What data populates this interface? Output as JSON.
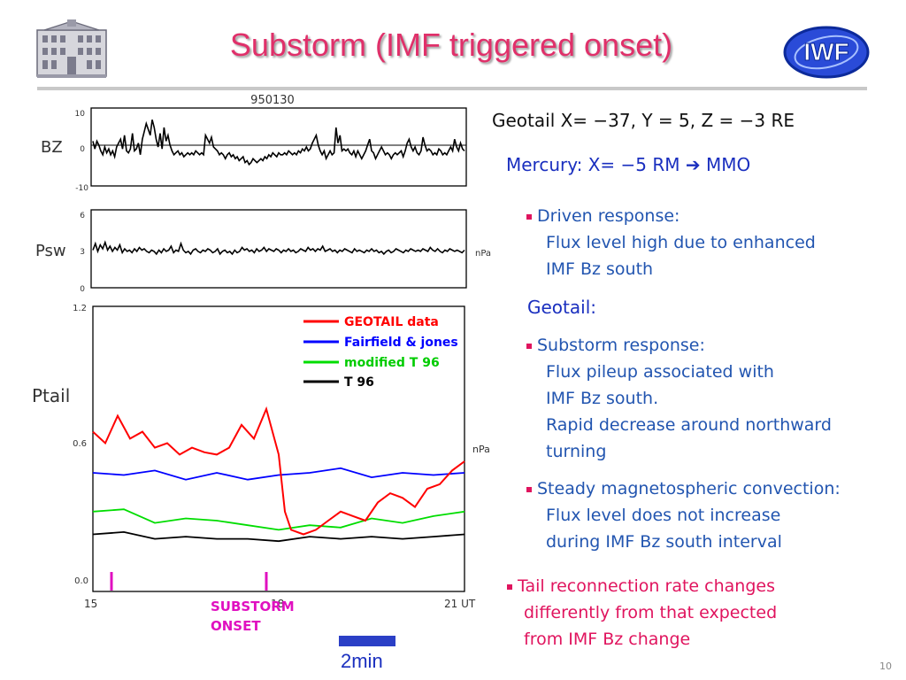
{
  "slide": {
    "title": "Substorm (IMF triggered onset)",
    "page_number": "10",
    "scale_label": "2min"
  },
  "right": {
    "geotail_coords": "Geotail X= −37, Y = 5, Z = −3 RE",
    "mercury": "Mercury:    X= −5 RM   ➔ MMO",
    "driven_head": "Driven response:",
    "driven_lines": [
      "Flux level high due to enhanced",
      "IMF Bz south"
    ],
    "geotail_head": "Geotail:",
    "substorm_head": "Substorm response:",
    "substorm_lines": [
      "Flux pileup associated with",
      "IMF Bz south.",
      "Rapid decrease around northward",
      "turning"
    ],
    "steady_head": "Steady magnetospheric convection:",
    "steady_lines": [
      "Flux level does not  increase",
      "during IMF Bz south interval"
    ],
    "tail_lines": [
      "Tail reconnection rate changes",
      "differently from that expected",
      "from IMF Bz change"
    ]
  },
  "colors": {
    "title": "#e0306a",
    "geotail": "#ff0000",
    "fairfield": "#0000ff",
    "modified_t96": "#00dd00",
    "t96": "#000000",
    "onset_marker": "#e010c0"
  },
  "chart_data": [
    {
      "type": "line",
      "title": "950130",
      "ylabel": "BZ",
      "ylim": [
        -10,
        10
      ],
      "yticks": [
        "10",
        "0",
        "-10"
      ],
      "zero_line": true,
      "series": [
        {
          "values": [
            1.5,
            -0.5,
            1.5,
            0.5,
            -1,
            -2,
            0,
            -1.5,
            -0.5,
            -2,
            -1,
            -2.5,
            0,
            1,
            2,
            -0.5,
            3,
            -1,
            -1.5,
            -0.5,
            3.5,
            -1,
            -0.5,
            1,
            -2,
            2,
            4,
            6,
            4.5,
            3,
            7,
            5,
            2,
            0,
            3.5,
            -0.5,
            5,
            1.5,
            3,
            0.5,
            -1,
            -2,
            -1.5,
            -1,
            -2,
            -1.5,
            -2.5,
            -2,
            -1.5,
            -2,
            -1.5,
            -2,
            -1,
            -1.5,
            -2,
            -1.5,
            -2,
            3,
            2,
            1,
            2.5,
            0,
            -0.5,
            -1,
            -2,
            -1.5,
            -2,
            -3,
            -2,
            -1.5,
            -2.5,
            -2,
            -3,
            -2.5,
            -3.5,
            -3,
            -2.5,
            -4,
            -3.5,
            -4.5,
            -4,
            -3,
            -3.5,
            -4,
            -3.5,
            -3,
            -3.5,
            -2.5,
            -3,
            -2,
            -2.5,
            -1.5,
            -2,
            -2.5,
            -1.5,
            -2,
            -2,
            -1.5,
            -2,
            -1,
            -1.5,
            -2,
            -1.5,
            -2,
            -1,
            -1.5,
            -0.5,
            -1,
            0,
            -1,
            -0.5,
            1,
            2,
            3,
            0.5,
            -1,
            -2,
            -1,
            -3,
            -2,
            -1,
            -2,
            -1.5,
            5,
            1,
            3,
            -1,
            -0.5,
            -1,
            -0.5,
            -1.5,
            -2,
            -1,
            -2.5,
            -1,
            -2,
            -3,
            -2,
            -1,
            0.5,
            2,
            -1,
            -1.5,
            -3,
            -2,
            -1,
            0,
            -1,
            -2,
            -1.5,
            -2,
            -3,
            -2,
            -1.5,
            -2,
            -1.5,
            -1,
            -2.5,
            -1,
            1,
            2,
            0,
            -1,
            0,
            -1.5,
            -2,
            -1,
            2.5,
            0.5,
            -1,
            -0.5,
            -1,
            -2,
            -1.5,
            -2,
            -0.5,
            -1,
            -2,
            -1.5,
            -2,
            -1,
            0,
            -1,
            2,
            0,
            -1,
            1,
            -0.5,
            -1
          ]
        }
      ]
    },
    {
      "type": "line",
      "ylabel": "Psw",
      "unit": "nPa",
      "ylim": [
        0,
        6
      ],
      "yticks": [
        "6",
        "3",
        "0"
      ],
      "series": [
        {
          "values": [
            2.9,
            3.4,
            2.8,
            3.3,
            3.0,
            3.5,
            2.9,
            3.2,
            2.8,
            3.1,
            2.9,
            3.3,
            2.7,
            3.0,
            2.8,
            2.9,
            2.7,
            3.0,
            2.8,
            3.1,
            2.9,
            3.0,
            2.8,
            2.7,
            2.9,
            2.8,
            2.6,
            2.9,
            2.7,
            3.0,
            2.8,
            2.9,
            3.2,
            2.7,
            2.9,
            2.8,
            3.4,
            2.9,
            2.7,
            2.8,
            2.6,
            2.9,
            3.0,
            2.8,
            2.7,
            2.9,
            2.8,
            3.0,
            2.9,
            2.7,
            2.8,
            3.0,
            2.6,
            2.8,
            2.9,
            2.7,
            2.8,
            2.6,
            2.9,
            2.7,
            2.8,
            3.1,
            2.9,
            3.0,
            2.8,
            2.9,
            2.7,
            3.0,
            2.8,
            2.9,
            3.1,
            2.8,
            3.0,
            2.9,
            2.8,
            3.0,
            2.9,
            2.7,
            2.9,
            2.8,
            3.0,
            2.8,
            2.9,
            2.7,
            2.8,
            3.0,
            2.9,
            2.8,
            3.1,
            2.9,
            3.0,
            2.8,
            3.0,
            2.9,
            3.2,
            2.8,
            2.9,
            3.0,
            2.8,
            2.9,
            2.7,
            2.9,
            2.8,
            3.0,
            2.9,
            2.8,
            2.7,
            3.0,
            2.8,
            2.9,
            2.8,
            2.7,
            2.9,
            2.8,
            3.0,
            2.8,
            2.9,
            2.7,
            2.8,
            2.6,
            2.8,
            2.9,
            2.7,
            2.8,
            3.0,
            2.9,
            2.8,
            2.7,
            2.9,
            2.8,
            3.0,
            2.9,
            2.8,
            2.9,
            2.8,
            3.0,
            2.9,
            2.8,
            3.1,
            2.9,
            2.8,
            3.0,
            2.8,
            2.7,
            2.9,
            2.8,
            3.0,
            2.9,
            2.8,
            2.9,
            2.8,
            2.7,
            2.9
          ]
        }
      ]
    },
    {
      "type": "line",
      "ylabel": "Ptail",
      "unit": "nPa",
      "ylim": [
        0,
        1.2
      ],
      "yticks": [
        "1.2",
        "0.6",
        "0.0"
      ],
      "xticks": [
        "15",
        "18",
        "21 UT"
      ],
      "xlim": [
        15,
        21
      ],
      "legend_position": "top-right",
      "onset_label": [
        "SUBSTORM",
        "ONSET"
      ],
      "onset_x": [
        15.3,
        17.8
      ],
      "series": [
        {
          "name": "GEOTAIL data",
          "x": [
            15.0,
            15.2,
            15.4,
            15.6,
            15.8,
            16.0,
            16.2,
            16.4,
            16.6,
            16.8,
            17.0,
            17.2,
            17.4,
            17.6,
            17.8,
            18.0,
            18.1,
            18.2,
            18.4,
            18.6,
            18.8,
            19.0,
            19.2,
            19.4,
            19.6,
            19.8,
            20.0,
            20.2,
            20.4,
            20.6,
            20.8,
            21.0
          ],
          "values": [
            0.65,
            0.6,
            0.72,
            0.62,
            0.65,
            0.58,
            0.6,
            0.55,
            0.58,
            0.56,
            0.55,
            0.58,
            0.68,
            0.62,
            0.75,
            0.55,
            0.3,
            0.22,
            0.2,
            0.22,
            0.26,
            0.3,
            0.28,
            0.26,
            0.34,
            0.38,
            0.36,
            0.32,
            0.4,
            0.42,
            0.48,
            0.52
          ]
        },
        {
          "name": "Fairfield & jones",
          "x": [
            15.0,
            15.5,
            16.0,
            16.5,
            17.0,
            17.5,
            18.0,
            18.5,
            19.0,
            19.5,
            20.0,
            20.5,
            21.0
          ],
          "values": [
            0.47,
            0.46,
            0.48,
            0.44,
            0.47,
            0.44,
            0.46,
            0.47,
            0.49,
            0.45,
            0.47,
            0.46,
            0.47
          ]
        },
        {
          "name": "modified T 96",
          "x": [
            15.0,
            15.5,
            16.0,
            16.5,
            17.0,
            17.5,
            18.0,
            18.5,
            19.0,
            19.5,
            20.0,
            20.5,
            21.0
          ],
          "values": [
            0.3,
            0.31,
            0.25,
            0.27,
            0.26,
            0.24,
            0.22,
            0.24,
            0.23,
            0.27,
            0.25,
            0.28,
            0.3
          ]
        },
        {
          "name": "T 96",
          "x": [
            15.0,
            15.5,
            16.0,
            16.5,
            17.0,
            17.5,
            18.0,
            18.5,
            19.0,
            19.5,
            20.0,
            20.5,
            21.0
          ],
          "values": [
            0.2,
            0.21,
            0.18,
            0.19,
            0.18,
            0.18,
            0.17,
            0.19,
            0.18,
            0.19,
            0.18,
            0.19,
            0.2
          ]
        }
      ]
    }
  ]
}
